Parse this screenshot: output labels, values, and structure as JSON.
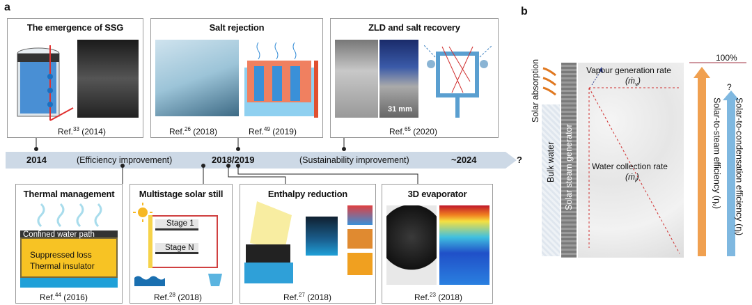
{
  "panel_a": {
    "letter": "a",
    "top_boxes": [
      {
        "title": "The emergence of SSG",
        "refs": [
          {
            "prefix": "Ref.",
            "sup": "33",
            "year": "(2014)"
          }
        ]
      },
      {
        "title": "Salt rejection",
        "refs": [
          {
            "prefix": "Ref.",
            "sup": "26",
            "year": "(2018)"
          },
          {
            "prefix": "Ref.",
            "sup": "49",
            "year": "(2019)"
          }
        ],
        "scale_bar": ""
      },
      {
        "title": "ZLD and salt recovery",
        "refs": [
          {
            "prefix": "Ref.",
            "sup": "65",
            "year": "(2020)"
          }
        ],
        "scale_bar": "31 mm"
      }
    ],
    "bottom_boxes": [
      {
        "title": "Thermal management",
        "labels": [
          "Confined water path",
          "Suppressed loss",
          "Thermal insulator"
        ],
        "refs": [
          {
            "prefix": "Ref.",
            "sup": "44",
            "year": "(2016)"
          }
        ]
      },
      {
        "title": "Multistage solar still",
        "labels": [
          "Stage 1",
          "Stage N"
        ],
        "refs": [
          {
            "prefix": "Ref.",
            "sup": "28",
            "year": "(2018)"
          }
        ]
      },
      {
        "title": "Enthalpy reduction",
        "refs": [
          {
            "prefix": "Ref.",
            "sup": "27",
            "year": "(2018)"
          }
        ]
      },
      {
        "title": "3D evaporator",
        "refs": [
          {
            "prefix": "Ref.",
            "sup": "23",
            "year": "(2018)"
          }
        ]
      }
    ],
    "timeline": {
      "start": "2014",
      "left_phase": "(Efficiency improvement)",
      "middle": "2018/2019",
      "right_phase": "(Sustainability improvement)",
      "end": "~2024",
      "question": "?"
    }
  },
  "panel_b": {
    "letter": "b",
    "solar_absorption": "Solar absorption",
    "bulk_water": "Bulk water",
    "generator": "Solar steam generator",
    "vapour_rate": "Vapour generation rate",
    "vapour_symbol": "(ṁ",
    "vapour_sub": "v",
    "water_rate": "Water collection rate",
    "water_symbol": "(ṁ",
    "water_sub": "l",
    "percent": "100%",
    "question": "?",
    "steam_eff": "Solar-to-steam efficiency (η",
    "steam_sub": "v",
    "cond_eff": "Solar-to-condensation efficiency (η",
    "cond_sub": "l",
    "colors": {
      "orange": "#f0a050",
      "blue": "#7fb8e0"
    }
  }
}
